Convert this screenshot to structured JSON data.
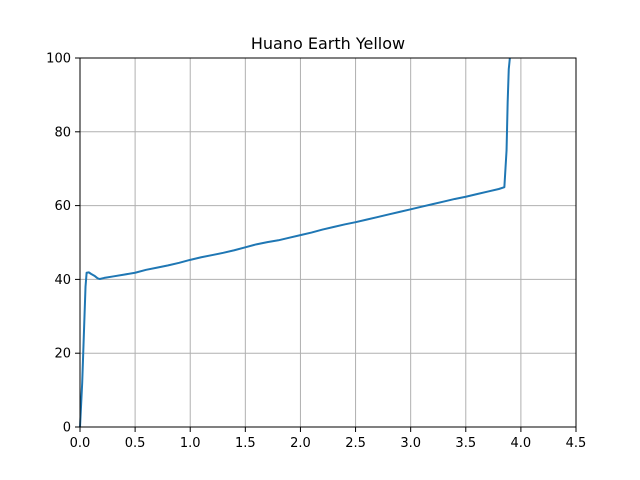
{
  "chart_data": {
    "type": "line",
    "title": "Huano Earth Yellow",
    "xlabel": "",
    "ylabel": "",
    "xlim": [
      0,
      4.5
    ],
    "ylim": [
      0,
      100
    ],
    "grid": true,
    "x_ticks": [
      0.0,
      0.5,
      1.0,
      1.5,
      2.0,
      2.5,
      3.0,
      3.5,
      4.0,
      4.5
    ],
    "x_tick_labels": [
      "0.0",
      "0.5",
      "1.0",
      "1.5",
      "2.0",
      "2.5",
      "3.0",
      "3.5",
      "4.0",
      "4.5"
    ],
    "y_ticks": [
      0,
      20,
      40,
      60,
      80,
      100
    ],
    "y_tick_labels": [
      "0",
      "20",
      "40",
      "60",
      "80",
      "100"
    ],
    "colors": {
      "line": "#1f77b4",
      "grid": "#b0b0b0",
      "axes": "#000000"
    },
    "series": [
      {
        "x": [
          0.0,
          0.02,
          0.05,
          0.06,
          0.08,
          0.1,
          0.13,
          0.16,
          0.18,
          0.22,
          0.3,
          0.4,
          0.5,
          0.6,
          0.7,
          0.8,
          0.9,
          1.0,
          1.1,
          1.2,
          1.3,
          1.4,
          1.5,
          1.6,
          1.7,
          1.8,
          1.9,
          2.0,
          2.1,
          2.2,
          2.3,
          2.4,
          2.5,
          2.6,
          2.7,
          2.8,
          2.9,
          3.0,
          3.1,
          3.2,
          3.3,
          3.4,
          3.5,
          3.6,
          3.7,
          3.8,
          3.85,
          3.87,
          3.88,
          3.89,
          3.9
        ],
        "y": [
          0.0,
          12.0,
          38.0,
          41.8,
          41.9,
          41.5,
          41.0,
          40.3,
          40.1,
          40.4,
          40.8,
          41.3,
          41.8,
          42.6,
          43.2,
          43.8,
          44.5,
          45.3,
          46.0,
          46.6,
          47.2,
          47.9,
          48.7,
          49.5,
          50.1,
          50.6,
          51.3,
          52.0,
          52.7,
          53.5,
          54.2,
          54.9,
          55.5,
          56.2,
          56.9,
          57.6,
          58.3,
          59.0,
          59.7,
          60.4,
          61.1,
          61.8,
          62.4,
          63.1,
          63.8,
          64.5,
          65.0,
          75.0,
          88.0,
          97.0,
          100.0
        ]
      }
    ]
  }
}
